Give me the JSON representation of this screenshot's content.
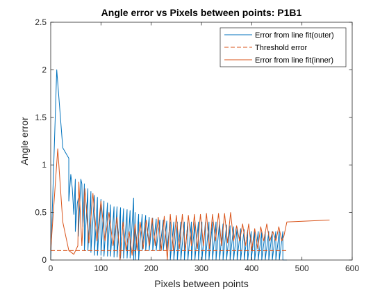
{
  "chart_data": {
    "type": "line",
    "title": "Angle error vs Pixels between points: P1B1",
    "xlabel": "Pixels between points",
    "ylabel": "Angle error",
    "xlim": [
      0,
      600
    ],
    "ylim": [
      0,
      2.5
    ],
    "xticks": [
      "0",
      "100",
      "200",
      "300",
      "400",
      "500",
      "600"
    ],
    "yticks": [
      "0",
      "0.5",
      "1",
      "1.5",
      "2",
      "2.5"
    ],
    "grid": false,
    "legend_position": "top-right",
    "series": [
      {
        "name": "Error from line fit(outer)",
        "color": "#0072BD",
        "style": "solid",
        "x": [
          0,
          12,
          24,
          36,
          36,
          40,
          43,
          46,
          49,
          49,
          53,
          55,
          55,
          60,
          62,
          64,
          67,
          67,
          74,
          74,
          80,
          80,
          87,
          87,
          93,
          93,
          100,
          100,
          106,
          106,
          113,
          113,
          119,
          119,
          126,
          126,
          132,
          132,
          139,
          139,
          145,
          145,
          152,
          152,
          158,
          158,
          165,
          165,
          168,
          168,
          175,
          175,
          182,
          182,
          189,
          189,
          196,
          196,
          203,
          203,
          210,
          210,
          217,
          217,
          224,
          224,
          231,
          231,
          238,
          238,
          245,
          245,
          252,
          252,
          259,
          259,
          266,
          266,
          273,
          273,
          280,
          280,
          287,
          287,
          294,
          294,
          301,
          301,
          308,
          308,
          315,
          315,
          322,
          322,
          329,
          329,
          336,
          336,
          343,
          343,
          350,
          350,
          357,
          357,
          364,
          364,
          371,
          371,
          378,
          378,
          385,
          385,
          392,
          392,
          399,
          399,
          406,
          406,
          413,
          413,
          420,
          420,
          427,
          427,
          434,
          434,
          441,
          441,
          448,
          448,
          455,
          455,
          462,
          462,
          470
        ],
        "values": [
          0.0,
          2.0,
          1.18,
          1.07,
          0.62,
          0.9,
          0.75,
          0.48,
          0.85,
          0.3,
          0.6,
          0.65,
          0.25,
          0.85,
          0.8,
          0.35,
          0.8,
          0.1,
          0.75,
          0.1,
          0.72,
          0.08,
          0.68,
          0.05,
          0.66,
          0.05,
          0.64,
          0.05,
          0.62,
          0.04,
          0.6,
          0.04,
          0.58,
          0.04,
          0.56,
          0.03,
          0.56,
          0.03,
          0.55,
          0.02,
          0.54,
          0.02,
          0.53,
          0.02,
          0.52,
          0.02,
          0.65,
          0.0,
          0.5,
          0.0,
          0.48,
          0.0,
          0.48,
          0.1,
          0.47,
          0.1,
          0.45,
          0.1,
          0.44,
          0.1,
          0.43,
          0.1,
          0.42,
          0.1,
          0.42,
          0.1,
          0.41,
          0.1,
          0.4,
          0.0,
          0.4,
          0.0,
          0.4,
          0.0,
          0.4,
          0.0,
          0.4,
          0.0,
          0.4,
          0.0,
          0.4,
          0.0,
          0.4,
          0.0,
          0.4,
          0.0,
          0.4,
          0.0,
          0.4,
          0.0,
          0.4,
          0.0,
          0.4,
          0.0,
          0.4,
          0.0,
          0.4,
          0.0,
          0.38,
          0.0,
          0.37,
          0.0,
          0.36,
          0.0,
          0.35,
          0.0,
          0.34,
          0.0,
          0.33,
          0.0,
          0.32,
          0.0,
          0.31,
          0.0,
          0.3,
          0.0,
          0.3,
          0.0,
          0.3,
          0.0,
          0.3,
          0.0,
          0.3,
          0.0,
          0.3,
          0.0,
          0.3,
          0.0,
          0.3,
          0.0,
          0.3,
          0.0,
          0.3,
          0.0,
          0.0
        ]
      },
      {
        "name": "Threshold error",
        "color": "#D95319",
        "style": "dashed",
        "x": [
          0,
          470
        ],
        "values": [
          0.1,
          0.1
        ]
      },
      {
        "name": "Error from line fit(inner)",
        "color": "#D95319",
        "style": "solid",
        "x": [
          0,
          14,
          24,
          36,
          46,
          54,
          56,
          62,
          68,
          76,
          84,
          92,
          100,
          108,
          116,
          124,
          132,
          138,
          144,
          150,
          156,
          162,
          168,
          172,
          178,
          184,
          190,
          196,
          202,
          208,
          214,
          220,
          226,
          232,
          238,
          244,
          250,
          256,
          262,
          268,
          274,
          280,
          286,
          292,
          298,
          304,
          310,
          316,
          322,
          328,
          334,
          340,
          346,
          352,
          358,
          364,
          370,
          376,
          382,
          388,
          394,
          400,
          406,
          412,
          418,
          424,
          430,
          436,
          442,
          448,
          454,
          460,
          464,
          470,
          555
        ],
        "values": [
          0.1,
          1.17,
          0.4,
          0.1,
          0.06,
          0.15,
          0.82,
          0.15,
          0.75,
          0.18,
          0.7,
          0.2,
          0.62,
          0.2,
          0.5,
          0.15,
          0.45,
          0.0,
          0.4,
          0.1,
          0.3,
          0.05,
          0.38,
          0.1,
          0.4,
          0.12,
          0.42,
          0.15,
          0.44,
          0.15,
          0.45,
          0.1,
          0.46,
          0.0,
          0.48,
          0.1,
          0.47,
          0.12,
          0.48,
          0.1,
          0.47,
          0.15,
          0.48,
          0.12,
          0.48,
          0.15,
          0.49,
          0.12,
          0.48,
          0.2,
          0.49,
          0.15,
          0.49,
          0.18,
          0.5,
          0.2,
          0.36,
          0.2,
          0.38,
          0.15,
          0.38,
          0.1,
          0.33,
          0.12,
          0.35,
          0.2,
          0.38,
          0.2,
          0.3,
          0.2,
          0.35,
          0.2,
          0.25,
          0.4,
          0.42
        ]
      }
    ]
  }
}
